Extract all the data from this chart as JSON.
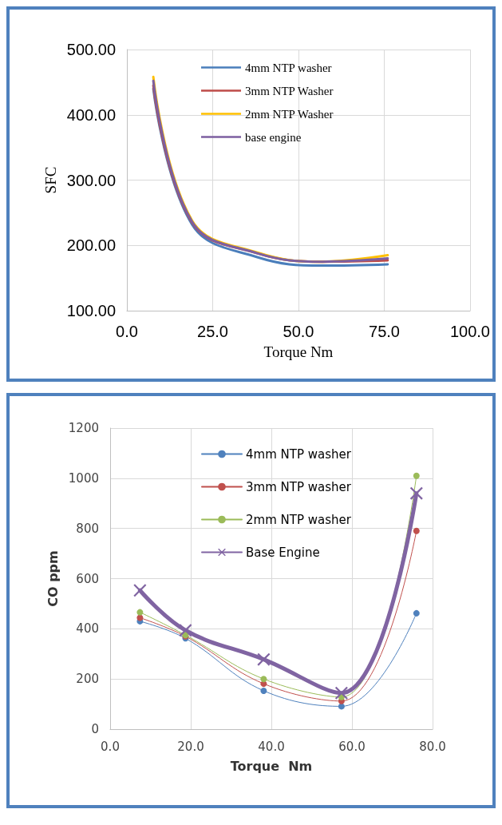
{
  "chart_data": [
    {
      "type": "line",
      "xlabel": "Torque Nm",
      "ylabel": "SFC",
      "xlim": [
        0,
        100
      ],
      "ylim": [
        100,
        500
      ],
      "xticks": [
        {
          "value": 0,
          "label": "0.0"
        },
        {
          "value": 25,
          "label": "25.0"
        },
        {
          "value": 50,
          "label": "50.0"
        },
        {
          "value": 75,
          "label": "75.0"
        },
        {
          "value": 100,
          "label": "100.0"
        }
      ],
      "yticks": [
        {
          "value": 100,
          "label": "100.00"
        },
        {
          "value": 200,
          "label": "200.00"
        },
        {
          "value": 300,
          "label": "300.00"
        },
        {
          "value": 400,
          "label": "400.00"
        },
        {
          "value": 500,
          "label": "500.00"
        }
      ],
      "grid": true,
      "legend": "top",
      "marker": "none",
      "x": [
        7.7,
        19,
        38,
        57,
        76
      ],
      "series": [
        {
          "name": "4mm NTP washer",
          "color": "#4a7ebb",
          "values": [
            440,
            232,
            182,
            169,
            171
          ]
        },
        {
          "name": "3mm NTP Washer",
          "color": "#be4b48",
          "values": [
            445,
            235,
            188,
            175,
            177
          ]
        },
        {
          "name": "2mm NTP Washer",
          "color": "#ffc000",
          "values": [
            458,
            238,
            189,
            175,
            185
          ]
        },
        {
          "name": "base engine",
          "color": "#7d5fa0",
          "values": [
            452,
            236,
            188,
            175,
            180
          ]
        }
      ]
    },
    {
      "type": "line",
      "xlabel": "Torque  Nm",
      "ylabel": "CO ppm",
      "xlim": [
        0,
        80
      ],
      "ylim": [
        0,
        1200
      ],
      "xticks": [
        {
          "value": 0,
          "label": "0.0"
        },
        {
          "value": 20,
          "label": "20.0"
        },
        {
          "value": 40,
          "label": "40.0"
        },
        {
          "value": 60,
          "label": "60.0"
        },
        {
          "value": 80,
          "label": "80.0"
        }
      ],
      "yticks": [
        0,
        200,
        400,
        600,
        800,
        1000,
        1200
      ],
      "grid": true,
      "legend": "top",
      "x": [
        7.4,
        18.7,
        38.1,
        57.4,
        76
      ],
      "series": [
        {
          "name": "4mm NTP washer",
          "color": "#4f81bd",
          "marker": "circle",
          "values": [
            430,
            362,
            153,
            91,
            462
          ]
        },
        {
          "name": "3mm NTP washer",
          "color": "#c0504d",
          "marker": "circle",
          "values": [
            444,
            370,
            181,
            112,
            790
          ]
        },
        {
          "name": "2mm NTP washer",
          "color": "#9bbb59",
          "marker": "circle",
          "values": [
            466,
            375,
            200,
            128,
            1010
          ]
        },
        {
          "name": "Base Engine",
          "color": "#8064a2",
          "marker": "cross",
          "values": [
            553,
            394,
            278,
            144,
            940
          ]
        }
      ]
    }
  ]
}
